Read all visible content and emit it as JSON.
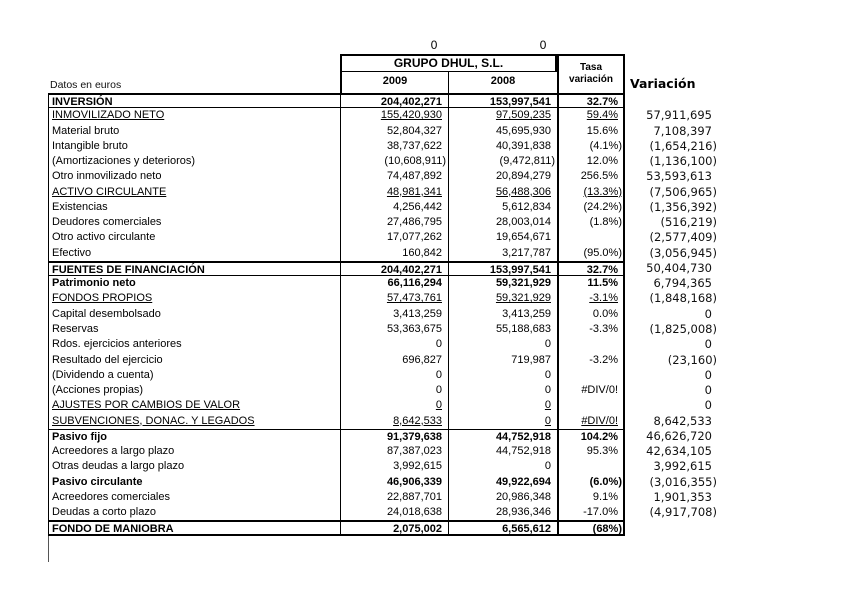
{
  "top_cells": {
    "zero_left": "0",
    "zero_right": "0"
  },
  "header": {
    "datos_label": "Datos en euros",
    "company": "GRUPO DHUL, S.L.",
    "col_2009": "2009",
    "col_2008": "2008",
    "tasa_header": "Tasa variación",
    "variacion_header": "Variación"
  },
  "colors": {
    "text": "#000000",
    "border": "#000000",
    "background": "#ffffff"
  },
  "rows": [
    {
      "label": "INVERSIÓN",
      "v2009": "204,402,271",
      "v2008": "153,997,541",
      "tasa": "32.7%",
      "variacion": "",
      "style": "bold"
    },
    {
      "label": "INMOVILIZADO NETO",
      "v2009": "155,420,930",
      "v2008": "97,509,235",
      "tasa": "59.4%",
      "variacion": "57,911,695",
      "style": "underline"
    },
    {
      "label": "Material bruto",
      "v2009": "52,804,327",
      "v2008": "45,695,930",
      "tasa": "15.6%",
      "variacion": "7,108,397",
      "style": ""
    },
    {
      "label": "Intangible bruto",
      "v2009": "38,737,622",
      "v2008": "40,391,838",
      "tasa": "(4.1%)",
      "variacion": "(1,654,216)",
      "style": ""
    },
    {
      "label": "(Amortizaciones y deterioros)",
      "v2009": "(10,608,911)",
      "v2008": "(9,472,811)",
      "tasa": "12.0%",
      "variacion": "(1,136,100)",
      "style": ""
    },
    {
      "label": "Otro inmovilizado neto",
      "v2009": "74,487,892",
      "v2008": "20,894,279",
      "tasa": "256.5%",
      "variacion": "53,593,613",
      "style": ""
    },
    {
      "label": "ACTIVO CIRCULANTE",
      "v2009": "48,981,341",
      "v2008": "56,488,306",
      "tasa": "(13.3%)",
      "variacion": "(7,506,965)",
      "style": "underline"
    },
    {
      "label": "Existencias",
      "v2009": "4,256,442",
      "v2008": "5,612,834",
      "tasa": "(24.2%)",
      "variacion": "(1,356,392)",
      "style": ""
    },
    {
      "label": "Deudores comerciales",
      "v2009": "27,486,795",
      "v2008": "28,003,014",
      "tasa": "(1.8%)",
      "variacion": "(516,219)",
      "style": ""
    },
    {
      "label": "Otro activo circulante",
      "v2009": "17,077,262",
      "v2008": "19,654,671",
      "tasa": "",
      "variacion": "(2,577,409)",
      "style": ""
    },
    {
      "label": "Efectivo",
      "v2009": "160,842",
      "v2008": "3,217,787",
      "tasa": "(95.0%)",
      "variacion": "(3,056,945)",
      "style": ""
    },
    {
      "label": "FUENTES DE FINANCIACIÓN",
      "v2009": "204,402,271",
      "v2008": "153,997,541",
      "tasa": "32.7%",
      "variacion": "50,404,730",
      "style": "bold"
    },
    {
      "label": "Patrimonio neto",
      "v2009": "66,116,294",
      "v2008": "59,321,929",
      "tasa": "11.5%",
      "variacion": "6,794,365",
      "style": "bold"
    },
    {
      "label": "FONDOS PROPIOS",
      "v2009": "57,473,761",
      "v2008": "59,321,929",
      "tasa": "-3.1%",
      "variacion": "(1,848,168)",
      "style": "underline"
    },
    {
      "label": "Capital desembolsado",
      "v2009": "3,413,259",
      "v2008": "3,413,259",
      "tasa": "0.0%",
      "variacion": "0",
      "style": ""
    },
    {
      "label": "Reservas",
      "v2009": "53,363,675",
      "v2008": "55,188,683",
      "tasa": "-3.3%",
      "variacion": "(1,825,008)",
      "style": ""
    },
    {
      "label": "Rdos. ejercicios anteriores",
      "v2009": "0",
      "v2008": "0",
      "tasa": "",
      "variacion": "0",
      "style": ""
    },
    {
      "label": "Resultado del ejercicio",
      "v2009": "696,827",
      "v2008": "719,987",
      "tasa": "-3.2%",
      "variacion": "(23,160)",
      "style": ""
    },
    {
      "label": "(Dividendo a cuenta)",
      "v2009": "0",
      "v2008": "0",
      "tasa": "",
      "variacion": "0",
      "style": ""
    },
    {
      "label": "(Acciones propias)",
      "v2009": "0",
      "v2008": "0",
      "tasa": "#DIV/0!",
      "variacion": "0",
      "style": ""
    },
    {
      "label": "AJUSTES POR CAMBIOS DE VALOR",
      "v2009": "0",
      "v2008": "0",
      "tasa": "",
      "variacion": "0",
      "style": "underline"
    },
    {
      "label": "SUBVENCIONES, DONAC. Y LEGADOS",
      "v2009": "8,642,533",
      "v2008": "0",
      "tasa": "#DIV/0!",
      "variacion": "8,642,533",
      "style": "underline"
    },
    {
      "label": "Pasivo fijo",
      "v2009": "91,379,638",
      "v2008": "44,752,918",
      "tasa": "104.2%",
      "variacion": "46,626,720",
      "style": "bold"
    },
    {
      "label": "Acreedores a largo plazo",
      "v2009": "87,387,023",
      "v2008": "44,752,918",
      "tasa": "95.3%",
      "variacion": "42,634,105",
      "style": ""
    },
    {
      "label": "Otras deudas a largo plazo",
      "v2009": "3,992,615",
      "v2008": "0",
      "tasa": "",
      "variacion": "3,992,615",
      "style": ""
    },
    {
      "label": "Pasivo circulante",
      "v2009": "46,906,339",
      "v2008": "49,922,694",
      "tasa": "(6.0%)",
      "variacion": "(3,016,355)",
      "style": "bold"
    },
    {
      "label": "Acreedores comerciales",
      "v2009": "22,887,701",
      "v2008": "20,986,348",
      "tasa": "9.1%",
      "variacion": "1,901,353",
      "style": ""
    },
    {
      "label": "Deudas a corto plazo",
      "v2009": "24,018,638",
      "v2008": "28,936,346",
      "tasa": "-17.0%",
      "variacion": "(4,917,708)",
      "style": ""
    },
    {
      "label": "FONDO DE MANIOBRA",
      "v2009": "2,075,002",
      "v2008": "6,565,612",
      "tasa": "(68%)",
      "variacion": "",
      "style": "bold"
    }
  ]
}
